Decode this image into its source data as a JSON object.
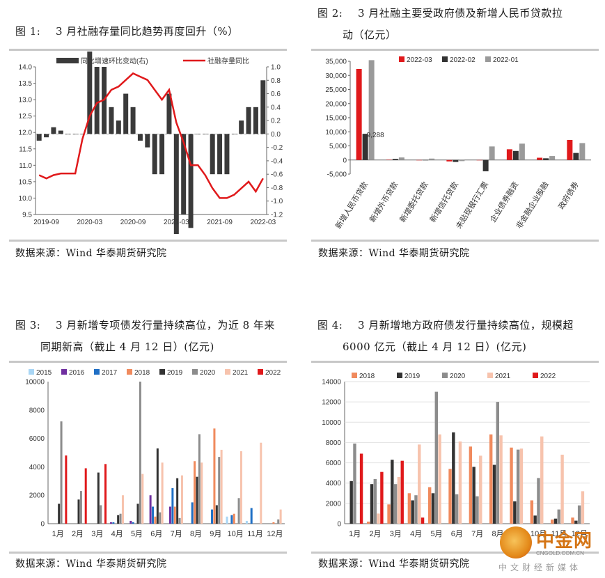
{
  "fig1": {
    "label": "图 1:",
    "title": "3 月社融存量同比趋势再度回升（%）",
    "source": "数据来源：Wind  华泰期货研究院"
  },
  "fig2": {
    "label": "图 2:",
    "title_line1": "3 月社融主要受政府债及新增人民币贷款拉",
    "title_line2": "动（亿元）",
    "source": "数据来源：Wind  华泰期货研究院"
  },
  "fig3": {
    "label": "图 3:",
    "title_line1": "3 月新增专项债发行量持续高位，为近 8 年来",
    "title_line2": "同期新高（截止 4 月 12 日）(亿元)",
    "source": "数据来源：Wind  华泰期货研究院"
  },
  "fig4": {
    "label": "图 4:",
    "title_line1": "3 月新增地方政府债发行量持续高位，规模超",
    "title_line2": "6000 亿元（截止 4 月 12 日）(亿元)",
    "source": "数据来源：Wind  华泰期货研究院"
  },
  "watermark": {
    "brand": "中金网",
    "url": "CNGOLD.COM.CN",
    "slogan": "中文财经新媒体"
  },
  "chart_data": [
    {
      "type": "bar+line",
      "legend": [
        "同比增速环比变动(右)",
        "社融存量同比"
      ],
      "x_ticks": [
        "2019-09",
        "2020-03",
        "2020-09",
        "2021-03",
        "2021-09",
        "2022-03"
      ],
      "months": [
        "2019-08",
        "2019-09",
        "2019-10",
        "2019-11",
        "2019-12",
        "2020-01",
        "2020-02",
        "2020-03",
        "2020-04",
        "2020-05",
        "2020-06",
        "2020-07",
        "2020-08",
        "2020-09",
        "2020-10",
        "2020-11",
        "2020-12",
        "2021-01",
        "2021-02",
        "2021-03",
        "2021-04",
        "2021-05",
        "2021-06",
        "2021-07",
        "2021-08",
        "2021-09",
        "2021-10",
        "2021-11",
        "2021-12",
        "2022-01",
        "2022-02",
        "2022-03"
      ],
      "yoy_level": [
        10.7,
        10.6,
        10.7,
        10.75,
        10.75,
        10.75,
        11.8,
        12.5,
        12.9,
        13.0,
        13.3,
        13.4,
        13.6,
        13.8,
        13.7,
        13.6,
        13.3,
        13.0,
        13.3,
        12.3,
        11.7,
        11.0,
        11.0,
        10.7,
        10.3,
        10.0,
        10.0,
        10.1,
        10.3,
        10.5,
        10.2,
        10.6
      ],
      "mom_change": [
        -0.1,
        -0.05,
        0.1,
        0.05,
        0.0,
        0.0,
        0.0,
        1.6,
        1.0,
        1.0,
        0.4,
        0.2,
        0.6,
        0.4,
        -0.1,
        -0.2,
        -0.6,
        -0.6,
        0.6,
        -2.1,
        -1.2,
        -1.4,
        0.0,
        0.0,
        -0.6,
        -0.6,
        -0.6,
        0.0,
        0.2,
        0.4,
        0.4,
        0.8
      ],
      "ylim_left": [
        9.5,
        14.0
      ],
      "ylim_right": [
        -1.2,
        1.0
      ],
      "left_ticks": [
        "14.0",
        "13.5",
        "13.0",
        "12.5",
        "12.0",
        "11.5",
        "11.0",
        "10.5",
        "10.0",
        "9.5"
      ],
      "right_ticks": [
        "1.0",
        "0.8",
        "0.6",
        "0.4",
        "0.2",
        "0.0",
        "-0.2",
        "-0.4",
        "-0.6",
        "-0.8",
        "-1.0",
        "-1.2"
      ],
      "colors": {
        "bar": "#3a3a3a",
        "line": "#e0191b"
      }
    },
    {
      "type": "bar",
      "categories": [
        "新增人民币贷款",
        "新增外币贷款",
        "新增委托贷款",
        "新增信托贷款",
        "未贴现银行汇票",
        "企业债券融资",
        "非金融企业股融",
        "政府债券"
      ],
      "series": [
        {
          "name": "2022-03",
          "values": [
            32291,
            100,
            -100,
            -500,
            -100,
            3800,
            800,
            7100
          ]
        },
        {
          "name": "2022-02",
          "values": [
            9288,
            400,
            0,
            -700,
            -4000,
            3200,
            600,
            2500
          ]
        },
        {
          "name": "2022-01",
          "values": [
            35398,
            900,
            500,
            -400,
            4800,
            5800,
            1400,
            6000
          ]
        }
      ],
      "annotation": "9,288",
      "ylim": [
        -5000,
        35000
      ],
      "y_ticks": [
        "35,000",
        "30,000",
        "25,000",
        "20,000",
        "15,000",
        "10,000",
        "5,000",
        "0",
        "-5,000"
      ],
      "colors": {
        "2022-03": "#e0191b",
        "2022-02": "#333333",
        "2022-01": "#9a9a9a"
      }
    },
    {
      "type": "bar",
      "categories": [
        "1月",
        "2月",
        "3月",
        "4月",
        "5月",
        "6月",
        "7月",
        "8月",
        "9月",
        "10月",
        "11月",
        "12月"
      ],
      "series": [
        {
          "name": "2015",
          "values": [
            0,
            0,
            0,
            0,
            0,
            0,
            0,
            0,
            0,
            500,
            200,
            0
          ]
        },
        {
          "name": "2016",
          "values": [
            0,
            0,
            0,
            100,
            200,
            2000,
            1200,
            0,
            0,
            0,
            0,
            0
          ]
        },
        {
          "name": "2017",
          "values": [
            0,
            0,
            0,
            100,
            100,
            1200,
            2500,
            1500,
            1000,
            600,
            1100,
            0
          ]
        },
        {
          "name": "2018",
          "values": [
            0,
            0,
            0,
            0,
            0,
            500,
            1200,
            4400,
            6700,
            700,
            0,
            100
          ]
        },
        {
          "name": "2019",
          "values": [
            1400,
            1700,
            3600,
            600,
            1400,
            5300,
            3200,
            3300,
            1300,
            0,
            0,
            0
          ]
        },
        {
          "name": "2020",
          "values": [
            7200,
            2300,
            1300,
            700,
            10000,
            800,
            400,
            6300,
            4700,
            1800,
            0,
            300
          ]
        },
        {
          "name": "2021",
          "values": [
            0,
            0,
            0,
            2000,
            3500,
            4300,
            3400,
            4300,
            5200,
            5100,
            5700,
            1000
          ]
        },
        {
          "name": "2022",
          "values": [
            4800,
            3900,
            4200,
            0,
            0,
            0,
            0,
            0,
            0,
            0,
            0,
            0
          ]
        }
      ],
      "ylim": [
        0,
        10000
      ],
      "y_ticks": [
        "10000",
        "8000",
        "6000",
        "4000",
        "2000",
        "0"
      ],
      "colors": {
        "2015": "#a9d6f5",
        "2016": "#7030a0",
        "2017": "#1f6fc5",
        "2018": "#f08a5d",
        "2019": "#333333",
        "2020": "#8c8c8c",
        "2021": "#f7c3ad",
        "2022": "#e0191b"
      }
    },
    {
      "type": "bar",
      "categories": [
        "1月",
        "2月",
        "3月",
        "4月",
        "5月",
        "6月",
        "7月",
        "8月",
        "9月",
        "10月",
        "11月",
        "12月"
      ],
      "series": [
        {
          "name": "2018",
          "values": [
            0,
            200,
            1900,
            3000,
            3600,
            5400,
            7600,
            8800,
            7500,
            2300,
            400,
            600
          ]
        },
        {
          "name": "2019",
          "values": [
            4200,
            3900,
            6300,
            2300,
            3000,
            9000,
            5600,
            5800,
            2200,
            800,
            500,
            300
          ]
        },
        {
          "name": "2020",
          "values": [
            7900,
            4400,
            3900,
            2800,
            13000,
            2900,
            2700,
            12000,
            7300,
            4500,
            1400,
            1800
          ]
        },
        {
          "name": "2021",
          "values": [
            0,
            1000,
            4600,
            7800,
            8800,
            8100,
            6700,
            8700,
            7400,
            8600,
            6800,
            3200
          ]
        },
        {
          "name": "2022",
          "values": [
            6900,
            5100,
            6200,
            600,
            0,
            0,
            0,
            0,
            0,
            0,
            0,
            0
          ]
        }
      ],
      "ylim": [
        0,
        14000
      ],
      "y_ticks": [
        "14000",
        "12000",
        "10000",
        "8000",
        "6000",
        "4000",
        "2000",
        "0"
      ],
      "colors": {
        "2018": "#f08a5d",
        "2019": "#333333",
        "2020": "#8c8c8c",
        "2021": "#f7c3ad",
        "2022": "#e0191b"
      }
    }
  ]
}
